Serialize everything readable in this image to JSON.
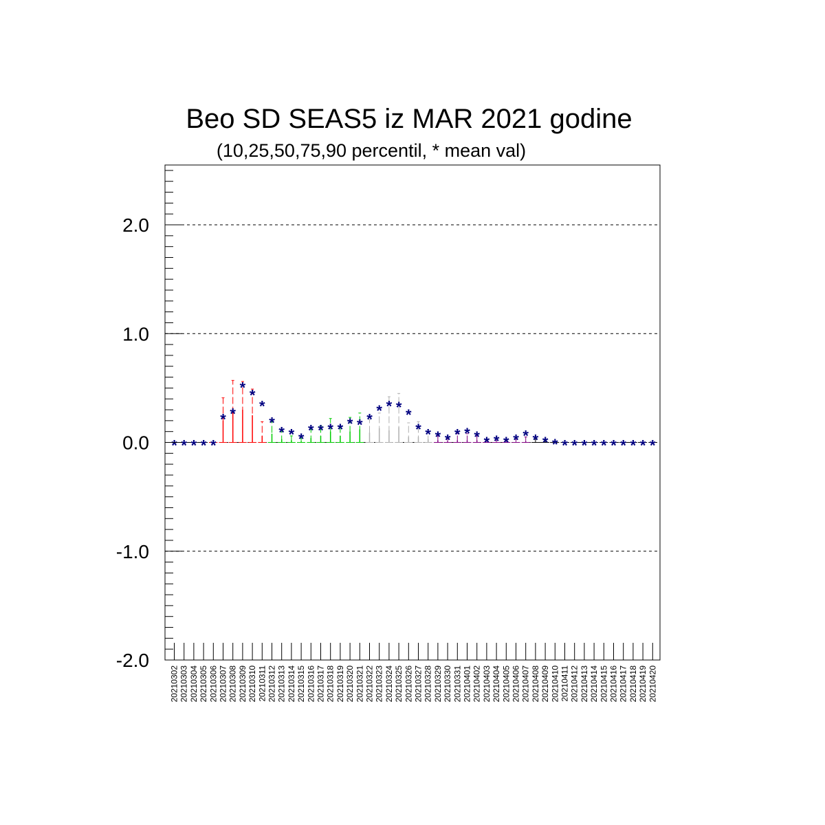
{
  "chart_data": {
    "type": "box-percentile",
    "title": "Beo SD SEAS5 iz MAR 2021 godine",
    "subtitle": "(10,25,50,75,90 percentil, * mean val)",
    "xlabel": "",
    "ylabel": "",
    "ylim": [
      -2.0,
      2.55
    ],
    "yticks": [
      "2.0",
      "1.0",
      "0.0",
      "-1.0",
      "-2.0"
    ],
    "grid": "horizontal dashed at major y ticks",
    "mean_marker": "*",
    "categories": [
      "20210302",
      "20210303",
      "20210304",
      "20210305",
      "20210306",
      "20210307",
      "20210308",
      "20210309",
      "20210310",
      "20210311",
      "20210312",
      "20210313",
      "20210314",
      "20210315",
      "20210316",
      "20210317",
      "20210318",
      "20210319",
      "20210320",
      "20210321",
      "20210322",
      "20210323",
      "20210324",
      "20210325",
      "20210326",
      "20210327",
      "20210328",
      "20210329",
      "20210330",
      "20210331",
      "20210401",
      "20210402",
      "20210403",
      "20210404",
      "20210405",
      "20210406",
      "20210407",
      "20210408",
      "20210409",
      "20210410",
      "20210411",
      "20210412",
      "20210413",
      "20210414",
      "20210415",
      "20210416",
      "20210417",
      "20210418",
      "20210419",
      "20210420"
    ],
    "mean": [
      0.0,
      0.0,
      0.0,
      0.0,
      0.0,
      0.24,
      0.29,
      0.53,
      0.46,
      0.36,
      0.21,
      0.12,
      0.1,
      0.06,
      0.14,
      0.14,
      0.15,
      0.15,
      0.2,
      0.19,
      0.24,
      0.32,
      0.36,
      0.35,
      0.28,
      0.15,
      0.1,
      0.08,
      0.05,
      0.1,
      0.11,
      0.08,
      0.03,
      0.04,
      0.03,
      0.05,
      0.09,
      0.05,
      0.03,
      0.01,
      0.0,
      0.0,
      0.0,
      0.0,
      0.0,
      0.0,
      0.0,
      0.0,
      0.0,
      0.0
    ],
    "p90": [
      0.0,
      0.0,
      0.0,
      0.0,
      0.0,
      0.41,
      0.57,
      0.56,
      0.49,
      0.19,
      0.19,
      0.1,
      0.06,
      0.04,
      0.12,
      0.15,
      0.22,
      0.15,
      0.23,
      0.27,
      0.21,
      0.27,
      0.42,
      0.45,
      0.18,
      0.19,
      0.1,
      0.06,
      0.04,
      0.08,
      0.08,
      0.06,
      0.02,
      0.02,
      0.02,
      0.03,
      0.05,
      0.03,
      0.01,
      0.0,
      0.0,
      0.0,
      0.0,
      0.0,
      0.0,
      0.0,
      0.0,
      0.0,
      0.0,
      0.0
    ],
    "p75": [
      0.0,
      0.0,
      0.0,
      0.0,
      0.0,
      0.2,
      0.3,
      0.3,
      0.25,
      0.06,
      0.08,
      0.03,
      0.02,
      0.01,
      0.04,
      0.06,
      0.1,
      0.06,
      0.1,
      0.12,
      0.09,
      0.13,
      0.11,
      0.14,
      0.05,
      0.05,
      0.03,
      0.02,
      0.01,
      0.02,
      0.02,
      0.02,
      0.0,
      0.0,
      0.0,
      0.0,
      0.01,
      0.0,
      0.0,
      0.0,
      0.0,
      0.0,
      0.0,
      0.0,
      0.0,
      0.0,
      0.0,
      0.0,
      0.0,
      0.0
    ],
    "p50": [
      0.0,
      0.0,
      0.0,
      0.0,
      0.0,
      0.0,
      0.0,
      0.0,
      0.0,
      0.0,
      0.0,
      0.0,
      0.0,
      0.0,
      0.0,
      0.0,
      0.0,
      0.0,
      0.0,
      0.0,
      0.0,
      0.0,
      0.0,
      0.0,
      0.0,
      0.0,
      0.0,
      0.0,
      0.0,
      0.0,
      0.0,
      0.0,
      0.0,
      0.0,
      0.0,
      0.0,
      0.0,
      0.0,
      0.0,
      0.0,
      0.0,
      0.0,
      0.0,
      0.0,
      0.0,
      0.0,
      0.0,
      0.0,
      0.0,
      0.0
    ],
    "p25": [
      0.0,
      0.0,
      0.0,
      0.0,
      0.0,
      0.0,
      0.0,
      0.0,
      0.0,
      0.0,
      0.0,
      0.0,
      0.0,
      0.0,
      0.0,
      0.0,
      0.0,
      0.0,
      0.0,
      0.0,
      0.0,
      0.0,
      0.0,
      0.0,
      0.0,
      0.0,
      0.0,
      0.0,
      0.0,
      0.0,
      0.0,
      0.0,
      0.0,
      0.0,
      0.0,
      0.0,
      0.0,
      0.0,
      0.0,
      0.0,
      0.0,
      0.0,
      0.0,
      0.0,
      0.0,
      0.0,
      0.0,
      0.0,
      0.0,
      0.0
    ],
    "p10": [
      0.0,
      0.0,
      0.0,
      0.0,
      0.0,
      0.0,
      0.0,
      0.0,
      0.0,
      0.0,
      0.0,
      0.0,
      0.0,
      0.0,
      0.0,
      0.0,
      0.0,
      0.0,
      0.0,
      0.0,
      0.0,
      0.0,
      0.0,
      0.0,
      0.0,
      0.0,
      0.0,
      0.0,
      0.0,
      0.0,
      0.0,
      0.0,
      0.0,
      0.0,
      0.0,
      0.0,
      0.0,
      0.0,
      0.0,
      0.0,
      0.0,
      0.0,
      0.0,
      0.0,
      0.0,
      0.0,
      0.0,
      0.0,
      0.0,
      0.0
    ],
    "group_colors": {
      "20210302-20210305": "#000000",
      "20210306-20210311": "#ff0000",
      "20210312-20210321": "#00cc00",
      "20210322-20210328": "#b0b0b0",
      "20210329-20210407": "#800080",
      "20210408-20210420": "#000000"
    },
    "colors": {
      "mean_marker": "#000080",
      "grid": "#000000",
      "axis": "#000000"
    }
  }
}
